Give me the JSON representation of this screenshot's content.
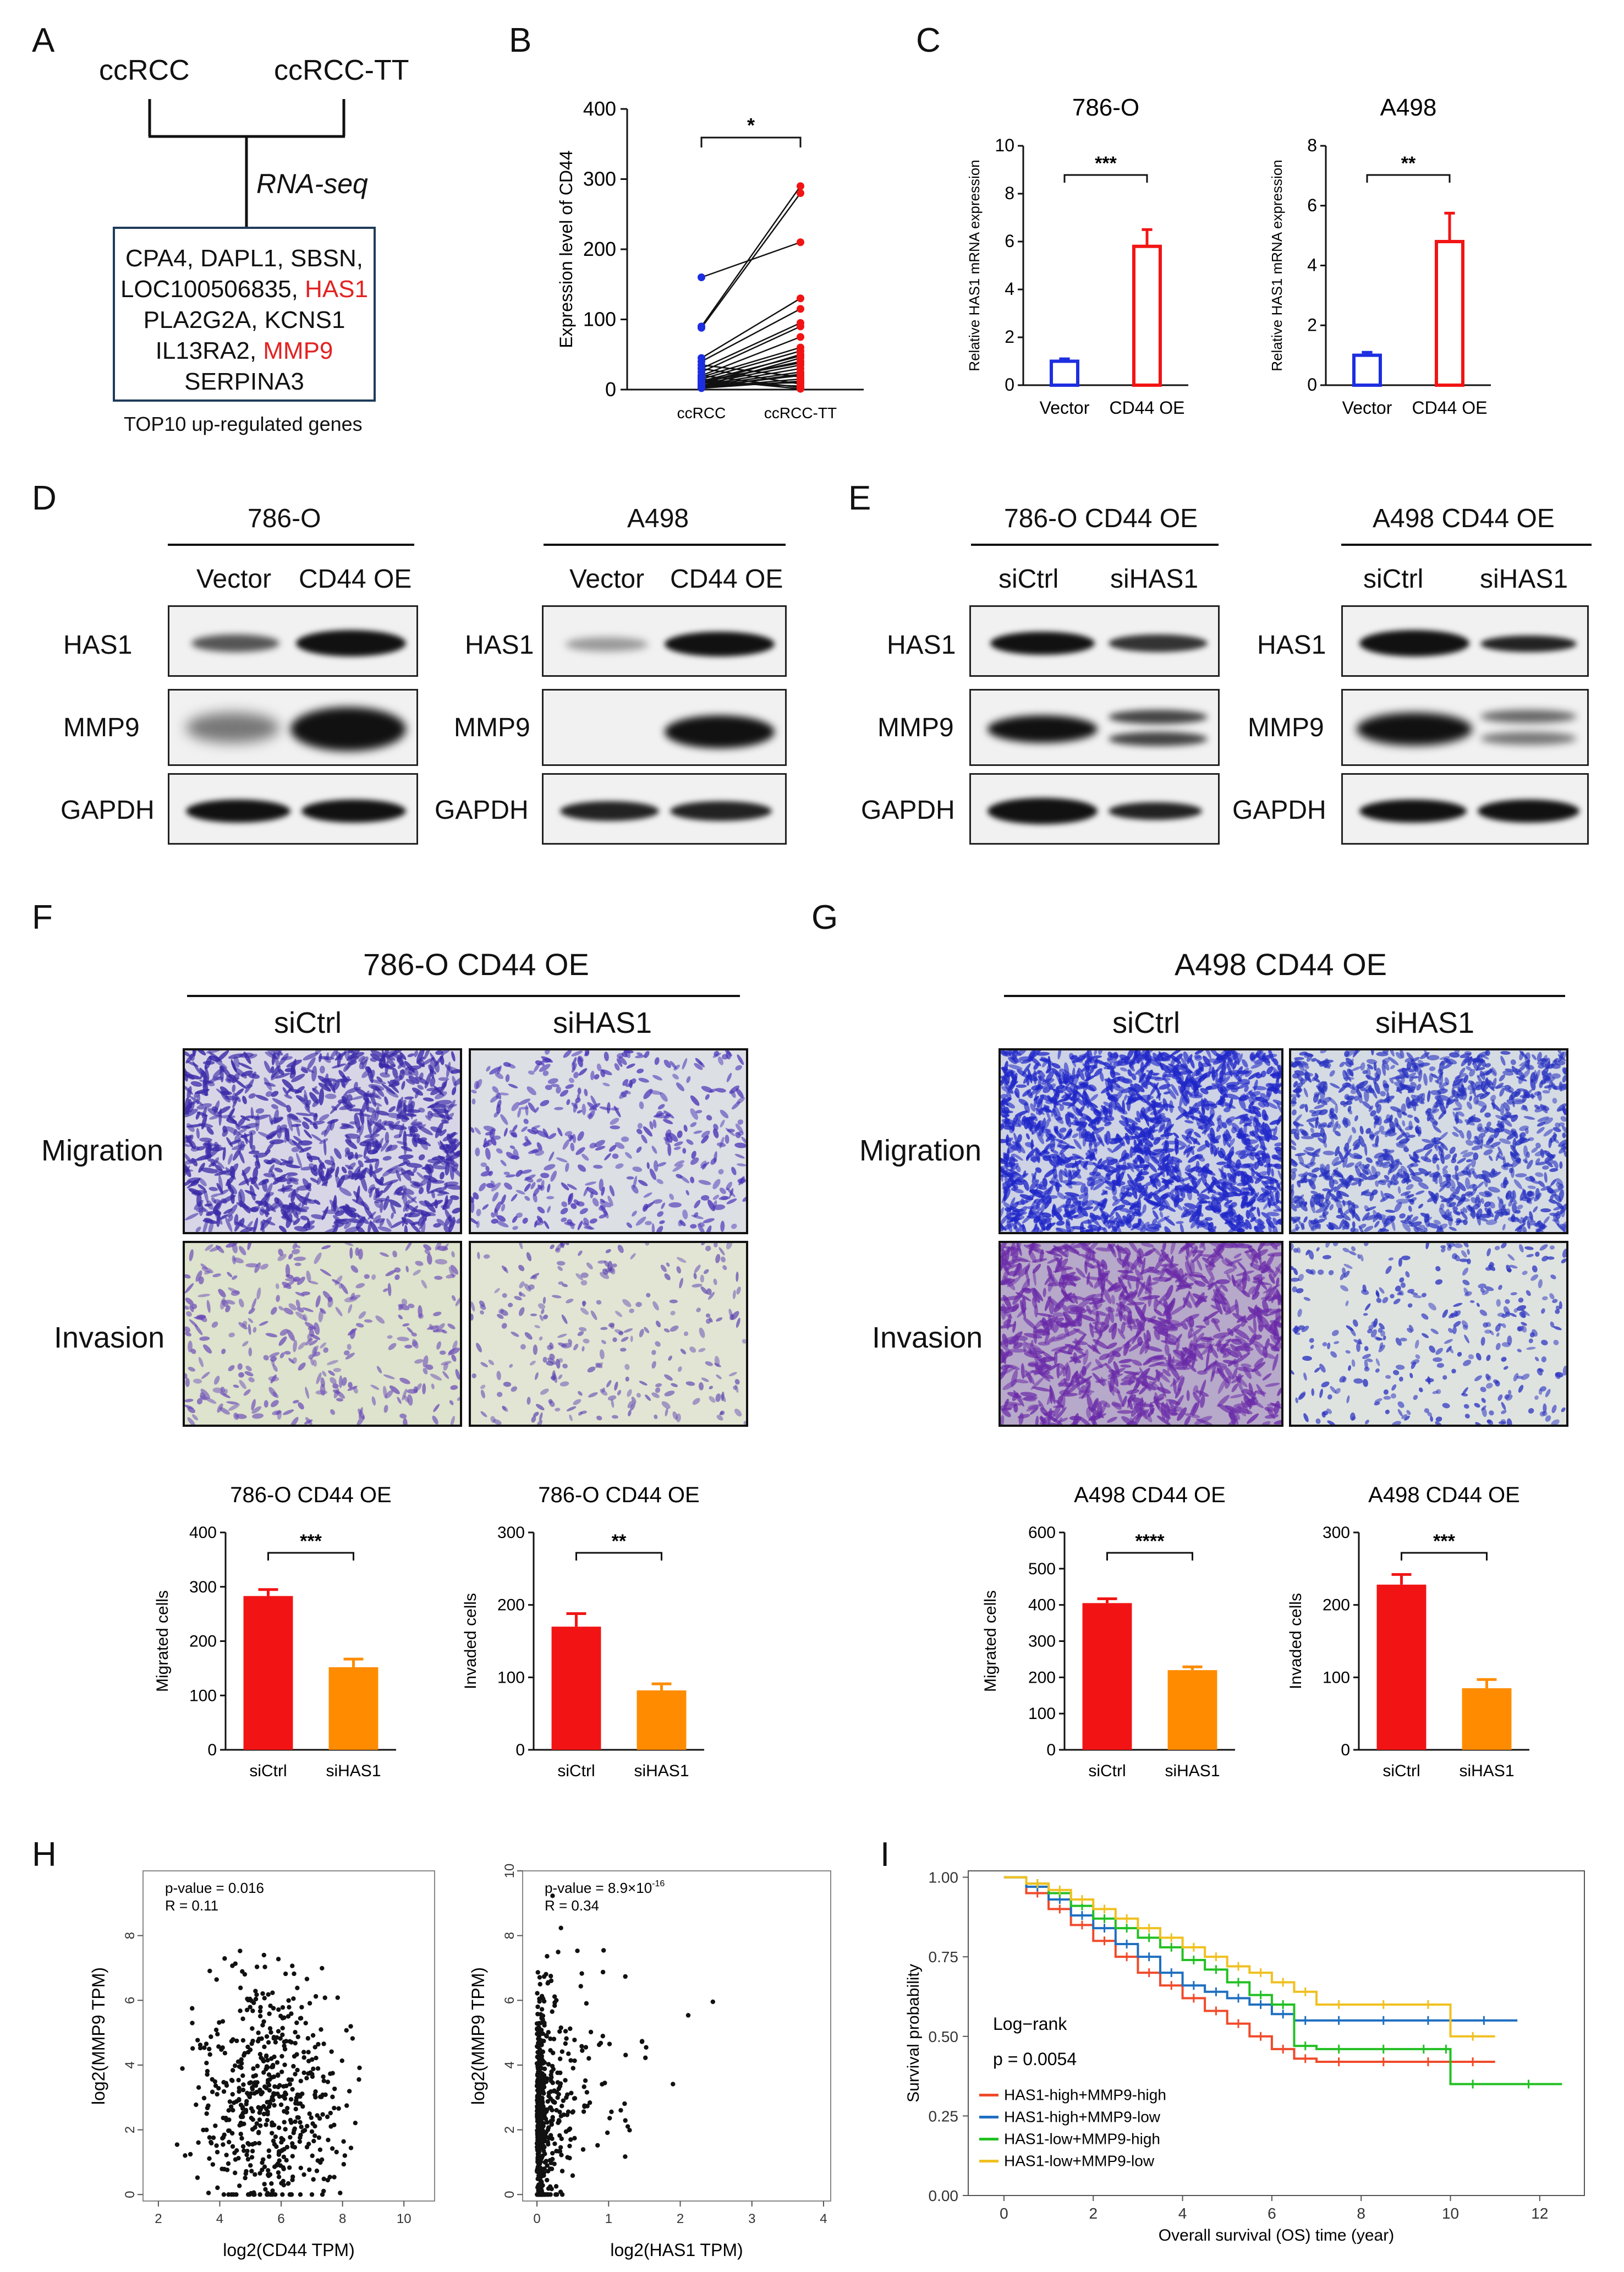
{
  "panel_letters": [
    "A",
    "B",
    "C",
    "D",
    "E",
    "F",
    "G",
    "H",
    "I"
  ],
  "panelA": {
    "top_left": "ccRCC",
    "top_right": "ccRCC-TT",
    "method": "RNA-seq",
    "genes": {
      "line1": "CPA4, DAPL1, SBSN,",
      "line2_a": "LOC100506835, ",
      "line2_b": "HAS1",
      "line3": "PLA2G2A, KCNS1",
      "line4_a": "IL13RA2, ",
      "line4_b": "MMP9",
      "line5": "SERPINA3"
    },
    "caption": "TOP10 up-regulated genes"
  },
  "panelD": {
    "left_title": "786-O",
    "right_title": "A498",
    "lanes": [
      "Vector",
      "CD44 OE"
    ],
    "rows": [
      "HAS1",
      "MMP9",
      "GAPDH"
    ]
  },
  "panelE": {
    "left_title": "786-O CD44 OE",
    "right_title": "A498 CD44 OE",
    "lanes": [
      "siCtrl",
      "siHAS1"
    ],
    "rows": [
      "HAS1",
      "MMP9",
      "GAPDH"
    ]
  },
  "panelF": {
    "title": "786-O CD44 OE",
    "cols": [
      "siCtrl",
      "siHAS1"
    ],
    "rows": [
      "Migration",
      "Invasion"
    ]
  },
  "panelG": {
    "title": "A498 CD44 OE",
    "cols": [
      "siCtrl",
      "siHAS1"
    ],
    "rows": [
      "Migration",
      "Invasion"
    ]
  },
  "colors": {
    "blue": "#1d2ee0",
    "red": "#f21414",
    "orange": "#ff8c00",
    "km_red": "#f04a2a",
    "km_blue": "#1f6fc0",
    "km_green": "#22c022",
    "km_yellow": "#f0c020",
    "stain": "#4a2ec0"
  },
  "chart_data": [
    {
      "id": "B",
      "type": "scatter",
      "title": "",
      "xlabel": "",
      "ylabel": "Expression level of CD44",
      "categories": [
        "ccRCC",
        "ccRCC-TT"
      ],
      "ylim": [
        0,
        400
      ],
      "yticks": [
        0,
        100,
        200,
        300,
        400
      ],
      "significance": "*",
      "note": "paired samples connected by lines",
      "pairs": [
        [
          160,
          210
        ],
        [
          90,
          290
        ],
        [
          88,
          280
        ],
        [
          45,
          130
        ],
        [
          40,
          115
        ],
        [
          30,
          95
        ],
        [
          25,
          90
        ],
        [
          20,
          75
        ],
        [
          18,
          60
        ],
        [
          15,
          55
        ],
        [
          12,
          48
        ],
        [
          10,
          40
        ],
        [
          8,
          35
        ],
        [
          6,
          30
        ],
        [
          5,
          25
        ],
        [
          4,
          20
        ],
        [
          3,
          15
        ],
        [
          2,
          12
        ],
        [
          10,
          5
        ],
        [
          30,
          8
        ],
        [
          20,
          3
        ],
        [
          15,
          1
        ],
        [
          35,
          18
        ],
        [
          5,
          45
        ],
        [
          8,
          50
        ],
        [
          12,
          38
        ],
        [
          3,
          22
        ],
        [
          6,
          10
        ]
      ]
    },
    {
      "id": "C1",
      "type": "bar",
      "title": "786-O",
      "categories": [
        "Vector",
        "CD44 OE"
      ],
      "values": [
        1.0,
        5.8
      ],
      "errors": [
        0.1,
        0.7
      ],
      "ylabel": "Relative HAS1 mRNA expression",
      "ylim": [
        0,
        10
      ],
      "yticks": [
        0,
        2,
        4,
        6,
        8,
        10
      ],
      "significance": "***"
    },
    {
      "id": "C2",
      "type": "bar",
      "title": "A498",
      "categories": [
        "Vector",
        "CD44 OE"
      ],
      "values": [
        1.0,
        4.8
      ],
      "errors": [
        0.1,
        0.95
      ],
      "ylabel": "Relative HAS1 mRNA expression",
      "ylim": [
        0,
        8
      ],
      "yticks": [
        0,
        2,
        4,
        6,
        8
      ],
      "significance": "**"
    },
    {
      "id": "F1",
      "type": "bar",
      "title": "786-O CD44 OE",
      "categories": [
        "siCtrl",
        "siHAS1"
      ],
      "values": [
        283,
        152
      ],
      "errors": [
        12,
        15
      ],
      "ylabel": "Migrated cells",
      "ylim": [
        0,
        400
      ],
      "yticks": [
        0,
        100,
        200,
        300,
        400
      ],
      "significance": "***"
    },
    {
      "id": "F2",
      "type": "bar",
      "title": "786-O CD44 OE",
      "categories": [
        "siCtrl",
        "siHAS1"
      ],
      "values": [
        170,
        82
      ],
      "errors": [
        18,
        9
      ],
      "ylabel": "Invaded cells",
      "ylim": [
        0,
        300
      ],
      "yticks": [
        0,
        100,
        200,
        300
      ],
      "significance": "**"
    },
    {
      "id": "G1",
      "type": "bar",
      "title": "A498 CD44 OE",
      "categories": [
        "siCtrl",
        "siHAS1"
      ],
      "values": [
        405,
        220
      ],
      "errors": [
        12,
        9
      ],
      "ylabel": "Migrated cells",
      "ylim": [
        0,
        600
      ],
      "yticks": [
        0,
        100,
        200,
        300,
        400,
        500,
        600
      ],
      "significance": "****"
    },
    {
      "id": "G2",
      "type": "bar",
      "title": "A498 CD44 OE",
      "categories": [
        "siCtrl",
        "siHAS1"
      ],
      "values": [
        228,
        85
      ],
      "errors": [
        14,
        12
      ],
      "ylabel": "Invaded cells",
      "ylim": [
        0,
        300
      ],
      "yticks": [
        0,
        100,
        200,
        300
      ],
      "significance": "***"
    },
    {
      "id": "H1",
      "type": "scatter",
      "xlabel": "log2(CD44 TPM)",
      "ylabel": "log2(MMP9 TPM)",
      "xlim": [
        1.5,
        11
      ],
      "ylim": [
        -0.2,
        10
      ],
      "xticks": [
        2,
        4,
        6,
        8,
        10
      ],
      "yticks": [
        0,
        2,
        4,
        6,
        8
      ],
      "annotation_pvalue": "p-value = 0.016",
      "annotation_r": "R = 0.11"
    },
    {
      "id": "H2",
      "type": "scatter",
      "xlabel": "log2(HAS1 TPM)",
      "ylabel": "log2(MMP9 TPM)",
      "xlim": [
        -0.2,
        4.1
      ],
      "ylim": [
        -0.2,
        10
      ],
      "xticks": [
        0,
        1,
        2,
        3,
        4
      ],
      "yticks": [
        0,
        2,
        4,
        6,
        8,
        10
      ],
      "annotation_pvalue": "p-value = 8.9×10",
      "annotation_pvalue_exp": "-16",
      "annotation_r": "R = 0.34"
    },
    {
      "id": "I",
      "type": "line",
      "xlabel": "Overall survival (OS) time (year)",
      "ylabel": "Survival probability",
      "xlim": [
        -0.8,
        13
      ],
      "ylim": [
        0,
        1.02
      ],
      "xticks": [
        0,
        2,
        4,
        6,
        8,
        10,
        12
      ],
      "yticks": [
        0.0,
        0.25,
        0.5,
        0.75,
        1.0
      ],
      "ytick_labels": [
        "0.00",
        "0.25",
        "0.50",
        "0.75",
        "1.00"
      ],
      "test_label": "Log−rank",
      "pvalue": "p = 0.0054",
      "series": [
        {
          "name": "HAS1-high+MMP9-high",
          "x": [
            0,
            0.5,
            1,
            1.5,
            2,
            2.5,
            3,
            3.5,
            4,
            4.5,
            5,
            5.5,
            6,
            6.5,
            7,
            8,
            9,
            10,
            11
          ],
          "y": [
            1,
            0.95,
            0.9,
            0.85,
            0.8,
            0.75,
            0.7,
            0.66,
            0.62,
            0.58,
            0.54,
            0.5,
            0.46,
            0.43,
            0.42,
            0.42,
            0.42,
            0.42,
            0.42
          ]
        },
        {
          "name": "HAS1-high+MMP9-low",
          "x": [
            0,
            0.5,
            1,
            1.5,
            2,
            2.5,
            3,
            3.5,
            4,
            4.5,
            5,
            5.5,
            6,
            6.5,
            7,
            8,
            9,
            10,
            11.5
          ],
          "y": [
            1,
            0.97,
            0.93,
            0.88,
            0.84,
            0.79,
            0.75,
            0.7,
            0.66,
            0.64,
            0.62,
            0.6,
            0.57,
            0.55,
            0.55,
            0.55,
            0.55,
            0.55,
            0.55
          ]
        },
        {
          "name": "HAS1-low+MMP9-high",
          "x": [
            0,
            0.5,
            1,
            1.5,
            2,
            2.5,
            3,
            3.5,
            4,
            4.5,
            5,
            5.5,
            6,
            6.5,
            7,
            8,
            9,
            9.8,
            10,
            11,
            12.5
          ],
          "y": [
            1,
            0.98,
            0.95,
            0.91,
            0.87,
            0.84,
            0.81,
            0.78,
            0.74,
            0.71,
            0.67,
            0.63,
            0.6,
            0.47,
            0.46,
            0.46,
            0.46,
            0.46,
            0.35,
            0.35,
            0.35
          ]
        },
        {
          "name": "HAS1-low+MMP9-low",
          "x": [
            0,
            0.5,
            1,
            1.5,
            2,
            2.5,
            3,
            3.5,
            4,
            4.5,
            5,
            5.5,
            6,
            6.5,
            7,
            8,
            9,
            10,
            11
          ],
          "y": [
            1,
            0.98,
            0.96,
            0.93,
            0.9,
            0.87,
            0.84,
            0.81,
            0.78,
            0.75,
            0.72,
            0.7,
            0.67,
            0.64,
            0.6,
            0.6,
            0.6,
            0.5,
            0.5
          ]
        }
      ]
    }
  ]
}
